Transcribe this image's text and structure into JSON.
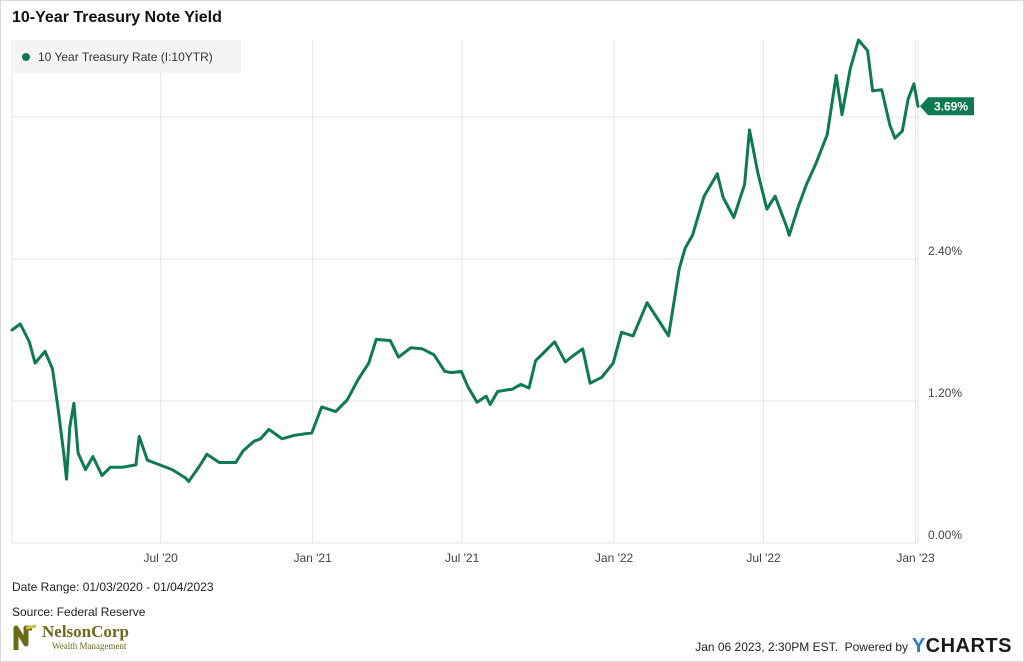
{
  "header": {
    "title": "10-Year Treasury Note Yield"
  },
  "legend": {
    "label": "10 Year Treasury Rate (I:10YTR)"
  },
  "footer": {
    "date_range": "Date Range: 01/03/2020 - 01/04/2023",
    "source": "Source: Federal Reserve",
    "timestamp": "Jan 06 2023, 2:30PM EST.",
    "powered_by": "Powered by",
    "brand": "CHARTS",
    "brand_initial": "Y"
  },
  "logo": {
    "name": "NelsonCorp",
    "tagline": "Wealth Management",
    "color": "#6b6b1a"
  },
  "colors": {
    "series": "#0d7a52",
    "grid": "#e6e6e6",
    "axis_text": "#444444"
  },
  "chart_data": {
    "type": "line",
    "title": "10-Year Treasury Note Yield",
    "xlabel": "",
    "ylabel": "",
    "grid": true,
    "legend_position": "top-left",
    "ylim": [
      0,
      4.25
    ],
    "xlim": [
      "2020-01-03",
      "2023-01-04"
    ],
    "y_ticks": [
      0,
      1.2,
      2.4,
      3.6
    ],
    "y_tick_labels": [
      "0.00%",
      "1.20%",
      "2.40%",
      ""
    ],
    "x_ticks": [
      "2020-07-01",
      "2021-01-01",
      "2021-07-01",
      "2022-01-01",
      "2022-07-01",
      "2023-01-01"
    ],
    "x_tick_labels": [
      "Jul '20",
      "Jan '21",
      "Jul '21",
      "Jan '22",
      "Jul '22",
      "Jan '23"
    ],
    "last_value_label": "3.69%",
    "series": [
      {
        "name": "10 Year Treasury Rate (I:10YTR)",
        "points": [
          [
            "2020-01-03",
            1.8
          ],
          [
            "2020-01-13",
            1.85
          ],
          [
            "2020-01-24",
            1.7
          ],
          [
            "2020-01-31",
            1.52
          ],
          [
            "2020-02-12",
            1.62
          ],
          [
            "2020-02-21",
            1.47
          ],
          [
            "2020-02-28",
            1.13
          ],
          [
            "2020-03-06",
            0.74
          ],
          [
            "2020-03-09",
            0.54
          ],
          [
            "2020-03-13",
            0.98
          ],
          [
            "2020-03-18",
            1.18
          ],
          [
            "2020-03-23",
            0.76
          ],
          [
            "2020-04-01",
            0.62
          ],
          [
            "2020-04-10",
            0.73
          ],
          [
            "2020-04-21",
            0.57
          ],
          [
            "2020-05-01",
            0.64
          ],
          [
            "2020-05-15",
            0.64
          ],
          [
            "2020-06-01",
            0.66
          ],
          [
            "2020-06-05",
            0.9
          ],
          [
            "2020-06-15",
            0.7
          ],
          [
            "2020-06-30",
            0.66
          ],
          [
            "2020-07-15",
            0.62
          ],
          [
            "2020-07-31",
            0.55
          ],
          [
            "2020-08-04",
            0.52
          ],
          [
            "2020-08-18",
            0.66
          ],
          [
            "2020-08-26",
            0.75
          ],
          [
            "2020-09-10",
            0.68
          ],
          [
            "2020-09-30",
            0.68
          ],
          [
            "2020-10-09",
            0.78
          ],
          [
            "2020-10-22",
            0.86
          ],
          [
            "2020-10-30",
            0.88
          ],
          [
            "2020-11-09",
            0.96
          ],
          [
            "2020-11-25",
            0.88
          ],
          [
            "2020-12-10",
            0.91
          ],
          [
            "2020-12-31",
            0.93
          ],
          [
            "2021-01-12",
            1.15
          ],
          [
            "2021-01-29",
            1.11
          ],
          [
            "2021-02-12",
            1.21
          ],
          [
            "2021-02-25",
            1.38
          ],
          [
            "2021-03-10",
            1.52
          ],
          [
            "2021-03-19",
            1.72
          ],
          [
            "2021-04-05",
            1.71
          ],
          [
            "2021-04-15",
            1.57
          ],
          [
            "2021-04-30",
            1.65
          ],
          [
            "2021-05-14",
            1.64
          ],
          [
            "2021-05-28",
            1.59
          ],
          [
            "2021-06-10",
            1.45
          ],
          [
            "2021-06-18",
            1.44
          ],
          [
            "2021-06-30",
            1.45
          ],
          [
            "2021-07-08",
            1.32
          ],
          [
            "2021-07-19",
            1.19
          ],
          [
            "2021-07-30",
            1.24
          ],
          [
            "2021-08-04",
            1.17
          ],
          [
            "2021-08-13",
            1.28
          ],
          [
            "2021-08-31",
            1.3
          ],
          [
            "2021-09-10",
            1.34
          ],
          [
            "2021-09-20",
            1.31
          ],
          [
            "2021-09-28",
            1.54
          ],
          [
            "2021-10-08",
            1.61
          ],
          [
            "2021-10-21",
            1.7
          ],
          [
            "2021-11-03",
            1.53
          ],
          [
            "2021-11-12",
            1.58
          ],
          [
            "2021-11-24",
            1.64
          ],
          [
            "2021-12-03",
            1.35
          ],
          [
            "2021-12-17",
            1.4
          ],
          [
            "2021-12-31",
            1.52
          ],
          [
            "2022-01-10",
            1.78
          ],
          [
            "2022-01-24",
            1.75
          ],
          [
            "2022-02-10",
            2.03
          ],
          [
            "2022-02-24",
            1.88
          ],
          [
            "2022-03-08",
            1.75
          ],
          [
            "2022-03-21",
            2.32
          ],
          [
            "2022-03-28",
            2.49
          ],
          [
            "2022-04-06",
            2.6
          ],
          [
            "2022-04-20",
            2.93
          ],
          [
            "2022-05-06",
            3.12
          ],
          [
            "2022-05-13",
            2.92
          ],
          [
            "2022-05-26",
            2.75
          ],
          [
            "2022-06-08",
            3.03
          ],
          [
            "2022-06-14",
            3.49
          ],
          [
            "2022-06-24",
            3.13
          ],
          [
            "2022-07-05",
            2.82
          ],
          [
            "2022-07-15",
            2.93
          ],
          [
            "2022-07-29",
            2.67
          ],
          [
            "2022-08-01",
            2.6
          ],
          [
            "2022-08-12",
            2.84
          ],
          [
            "2022-08-22",
            3.03
          ],
          [
            "2022-09-02",
            3.2
          ],
          [
            "2022-09-16",
            3.45
          ],
          [
            "2022-09-27",
            3.95
          ],
          [
            "2022-10-04",
            3.62
          ],
          [
            "2022-10-14",
            4.01
          ],
          [
            "2022-10-24",
            4.25
          ],
          [
            "2022-11-04",
            4.16
          ],
          [
            "2022-11-10",
            3.82
          ],
          [
            "2022-11-21",
            3.83
          ],
          [
            "2022-12-01",
            3.53
          ],
          [
            "2022-12-07",
            3.42
          ],
          [
            "2022-12-16",
            3.48
          ],
          [
            "2022-12-23",
            3.75
          ],
          [
            "2022-12-30",
            3.88
          ],
          [
            "2023-01-04",
            3.69
          ]
        ]
      }
    ]
  }
}
